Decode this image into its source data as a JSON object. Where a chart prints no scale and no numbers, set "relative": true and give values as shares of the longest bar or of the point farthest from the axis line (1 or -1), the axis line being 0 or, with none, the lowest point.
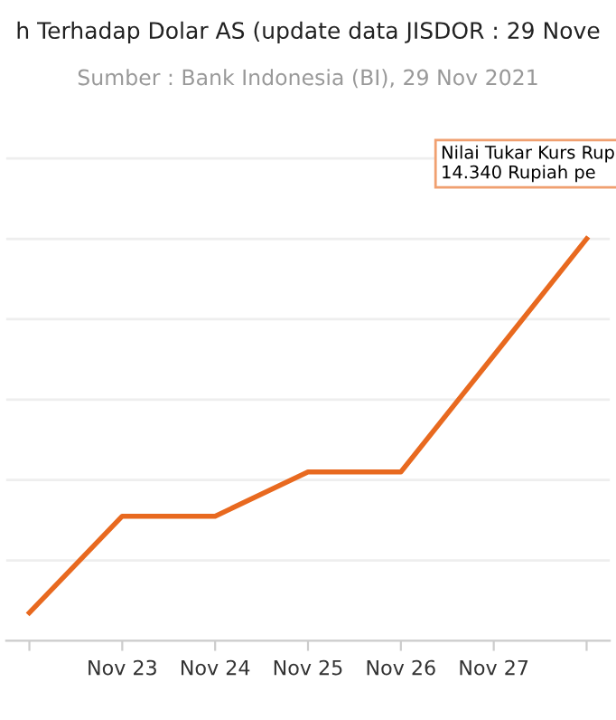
{
  "chart_data": {
    "type": "line",
    "title": "h Terhadap Dolar AS (update data JISDOR : 29 Nove",
    "subtitle": "Sumber : Bank Indonesia (BI), 29 Nov 2021",
    "categories": [
      null,
      "Nov 23",
      "Nov 24",
      "Nov 25",
      "Nov 26",
      "Nov 27",
      null
    ],
    "series": [
      {
        "color": "#e8691f",
        "values": [
          0.07,
          0.31,
          0.31,
          0.42,
          0.42,
          0.71,
          1
        ]
      }
    ],
    "relative": true,
    "grid": "y",
    "legend": false,
    "marker": "none",
    "line_style": "solid",
    "annotations": [
      "Nilai Tukar Kurs Rup",
      "14.340 Rupiah pe"
    ]
  }
}
